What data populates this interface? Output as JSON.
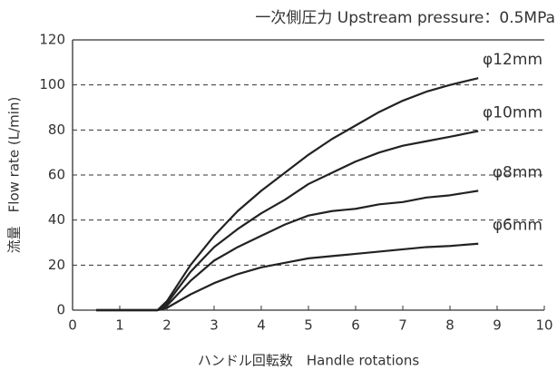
{
  "chart_data": {
    "type": "line",
    "title": "一次側圧力 Upstream pressure：0.5MPa",
    "xlabel": "ハンドル回転数　Handle rotations",
    "ylabel": "流量　Flow rate (L/min)",
    "x": [
      0.5,
      1,
      1.5,
      1.8,
      2,
      2.5,
      3,
      3.5,
      4,
      4.5,
      5,
      5.5,
      6,
      6.5,
      7,
      7.5,
      8,
      8.6
    ],
    "series": [
      {
        "name": "φ12mm",
        "color": "#222222",
        "values": [
          0,
          0,
          0,
          0,
          4,
          20,
          33,
          44,
          53,
          61,
          69,
          76,
          82,
          88,
          93,
          97,
          100,
          103
        ]
      },
      {
        "name": "φ10mm",
        "color": "#222222",
        "values": [
          0,
          0,
          0,
          0,
          3,
          17,
          28,
          36,
          43,
          49,
          56,
          61,
          66,
          70,
          73,
          75,
          77,
          79.5
        ]
      },
      {
        "name": "φ8mm",
        "color": "#222222",
        "values": [
          0,
          0,
          0,
          0,
          2,
          13,
          22,
          28,
          33,
          38,
          42,
          44,
          45,
          47,
          48,
          50,
          51,
          53
        ]
      },
      {
        "name": "φ6mm",
        "color": "#222222",
        "values": [
          0,
          0,
          0,
          0,
          1,
          7,
          12,
          16,
          19,
          21,
          23,
          24,
          25,
          26,
          27,
          28,
          28.5,
          29.5
        ]
      }
    ],
    "xlim": [
      0,
      10
    ],
    "xticks": [
      0,
      1,
      2,
      3,
      4,
      5,
      6,
      7,
      8,
      9,
      10
    ],
    "ylim": [
      0,
      120
    ],
    "yticks": [
      0,
      20,
      40,
      60,
      80,
      100,
      120
    ],
    "grid": true
  }
}
